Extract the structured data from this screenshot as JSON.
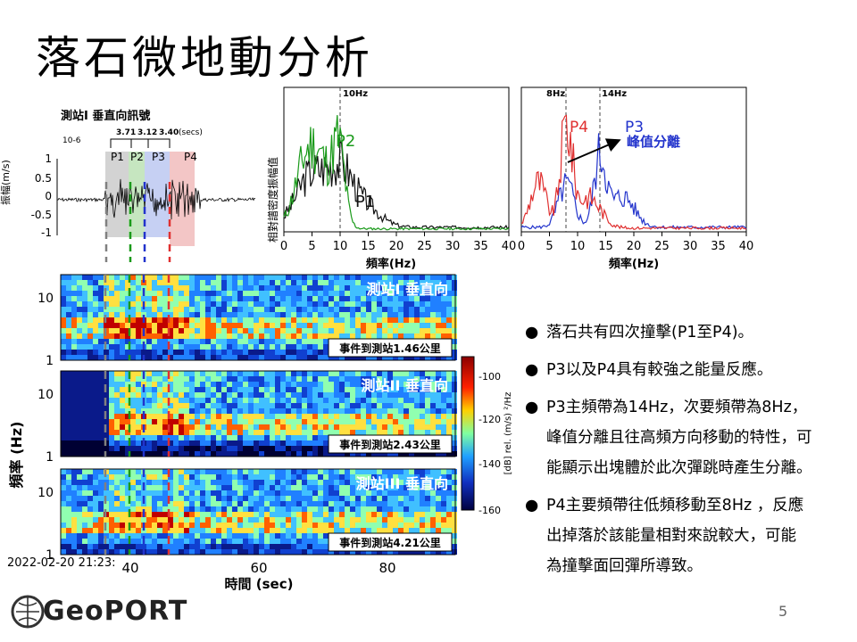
{
  "title": "落石微地動分析",
  "waveform": {
    "title": "測站I 垂直向訊號",
    "ylabel": "振幅(m/s)",
    "exponent": "10-6",
    "yticks": [
      "1",
      "0.5",
      "0",
      "-0.5",
      "-1"
    ],
    "intervals": [
      "3.71",
      "3.12",
      "3.40"
    ],
    "interval_unit": "(secs)",
    "peaks": [
      "P1",
      "P2",
      "P3",
      "P4"
    ]
  },
  "spectrum_left": {
    "ylabel": "相對譜密度振幅值",
    "xlabel": "頻率(Hz)",
    "marker": "10Hz",
    "labels": [
      "P2",
      "P1"
    ],
    "xticks": [
      "0",
      "5",
      "10",
      "15",
      "20",
      "25",
      "30",
      "35",
      "40"
    ]
  },
  "spectrum_right": {
    "xlabel": "頻率(Hz)",
    "markers": [
      "8Hz",
      "14Hz"
    ],
    "labels": [
      "P4",
      "P3"
    ],
    "annotation": "峰值分離",
    "xticks": [
      "0",
      "5",
      "10",
      "15",
      "20",
      "25",
      "30",
      "35",
      "40"
    ]
  },
  "spectrograms": {
    "ylabel": "頻率 (Hz)",
    "yticks": [
      "10",
      "1"
    ],
    "panels": [
      {
        "station": "測站I 垂直向",
        "distance": "事件到測站1.46公里"
      },
      {
        "station": "測站II 垂直向",
        "distance": "事件到測站2.43公里"
      },
      {
        "station": "測站III 垂直向",
        "distance": "事件到測站4.21公里"
      }
    ],
    "xticks": [
      "40",
      "60",
      "80"
    ],
    "xlabel": "時間 (sec)",
    "timestamp": "2022-02-20 21:23:",
    "colorbar_ticks": [
      "-100",
      "-120",
      "-140",
      "-160"
    ],
    "colorbar_label": "[dB] rel. (m/s) ²/Hz"
  },
  "bullets": [
    {
      "line1": "落石共有四次撞擊(P1至P4)。",
      "line2": ""
    },
    {
      "line1": "P3以及P4具有較強之能量反應。",
      "line2": ""
    },
    {
      "line1": "P3主頻帶為14Hz，次要頻帶為8Hz，",
      "line2": "峰值分離且往高頻方向移動的特性，可",
      "line3": "能顯示出塊體於此次彈跳時產生分離。"
    },
    {
      "line1": "P4主要頻帶往低頻移動至8Hz ，反應",
      "line2": "出掉落於該能量相對來說較大，可能",
      "line3": "為撞擊面回彈所導致。"
    }
  ],
  "logo_text": "GeoPORT",
  "page_number": "5",
  "colors": {
    "p1": "#808080",
    "p2": "#1a9a1a",
    "p3": "#2233cc",
    "p4": "#e03030"
  }
}
